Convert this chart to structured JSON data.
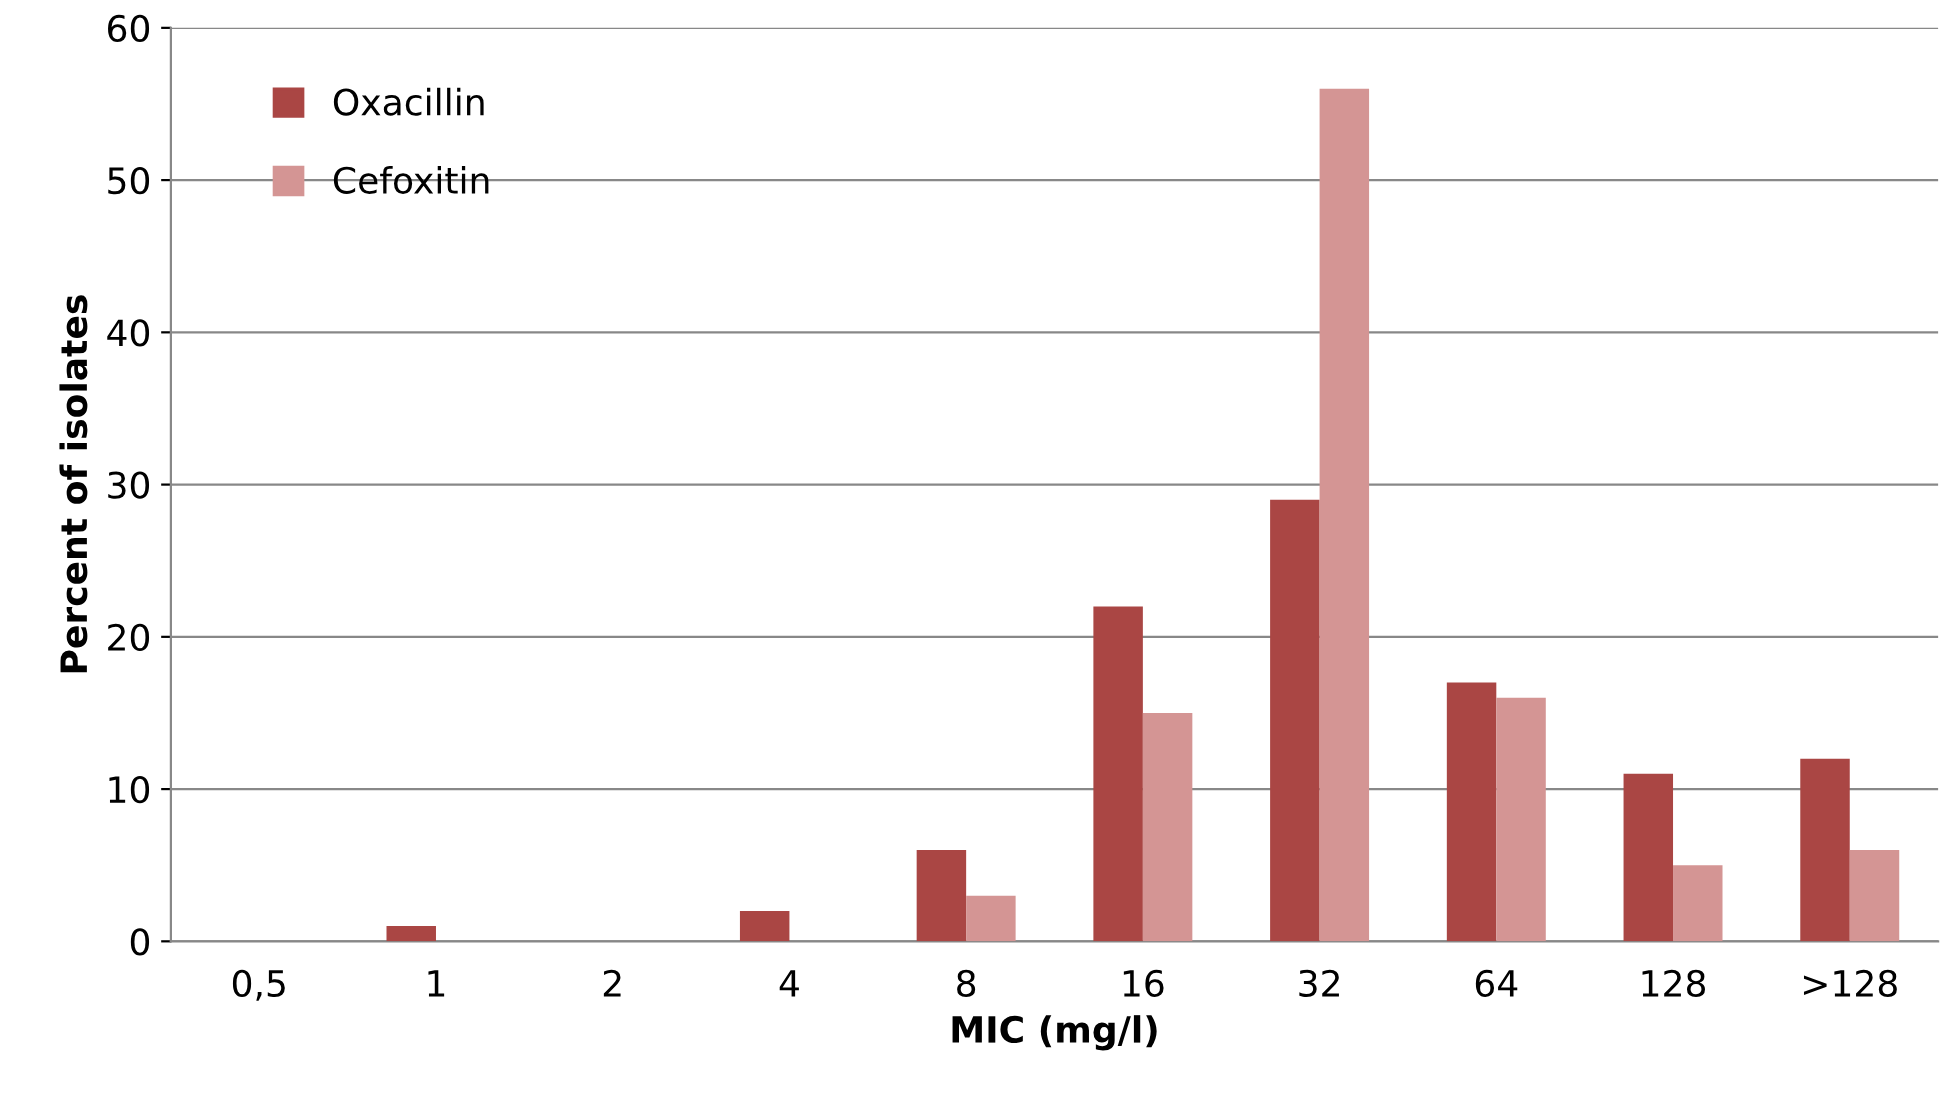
{
  "chart_data": {
    "type": "bar",
    "xlabel": "MIC (mg/l)",
    "ylabel": "Percent of isolates",
    "categories": [
      "0,5",
      "1",
      "2",
      "4",
      "8",
      "16",
      "32",
      "64",
      "128",
      ">128"
    ],
    "series": [
      {
        "name": "Oxacillin",
        "color": "#aa4644",
        "values": [
          0,
          1,
          0,
          2,
          6,
          22,
          29,
          17,
          11,
          12
        ]
      },
      {
        "name": "Cefoxitin",
        "color": "#d49594",
        "values": [
          0,
          0,
          0,
          0,
          3,
          15,
          56,
          16,
          5,
          6
        ]
      }
    ],
    "ylim": [
      0,
      60
    ],
    "yticks": [
      0,
      10,
      20,
      30,
      40,
      50,
      60
    ],
    "grid": "y",
    "legend": "top left"
  }
}
